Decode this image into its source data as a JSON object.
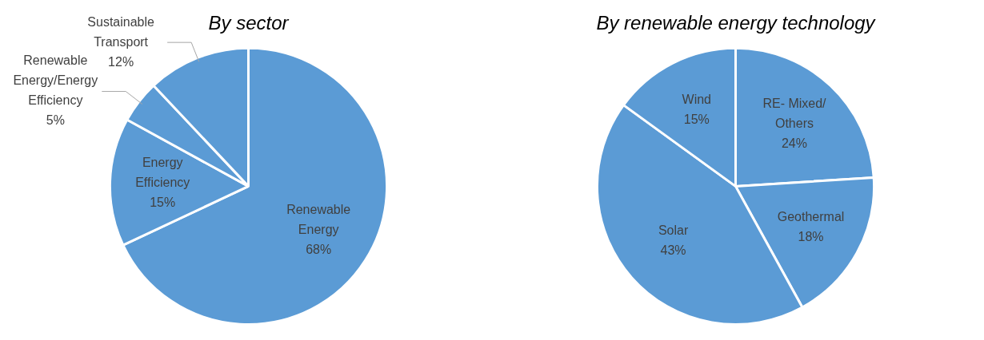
{
  "chart_data": [
    {
      "type": "pie",
      "title": "By sector",
      "categories": [
        "Renewable Energy",
        "Energy Efficiency",
        "Renewable Energy/Energy Efficiency",
        "Sustainable Transport"
      ],
      "values": [
        68,
        15,
        5,
        12
      ],
      "value_labels": [
        "68%",
        "15%",
        "5%",
        "12%"
      ],
      "colors": [
        "#5b9bd5",
        "#5b9bd5",
        "#5b9bd5",
        "#5b9bd5"
      ],
      "legend": false
    },
    {
      "type": "pie",
      "title": "By renewable energy technology",
      "categories": [
        "RE- Mixed/ Others",
        "Geothermal",
        "Solar",
        "Wind"
      ],
      "values": [
        24,
        18,
        43,
        15
      ],
      "value_labels": [
        "24%",
        "18%",
        "43%",
        "15%"
      ],
      "colors": [
        "#5b9bd5",
        "#5b9bd5",
        "#5b9bd5",
        "#5b9bd5"
      ],
      "legend": false
    }
  ]
}
